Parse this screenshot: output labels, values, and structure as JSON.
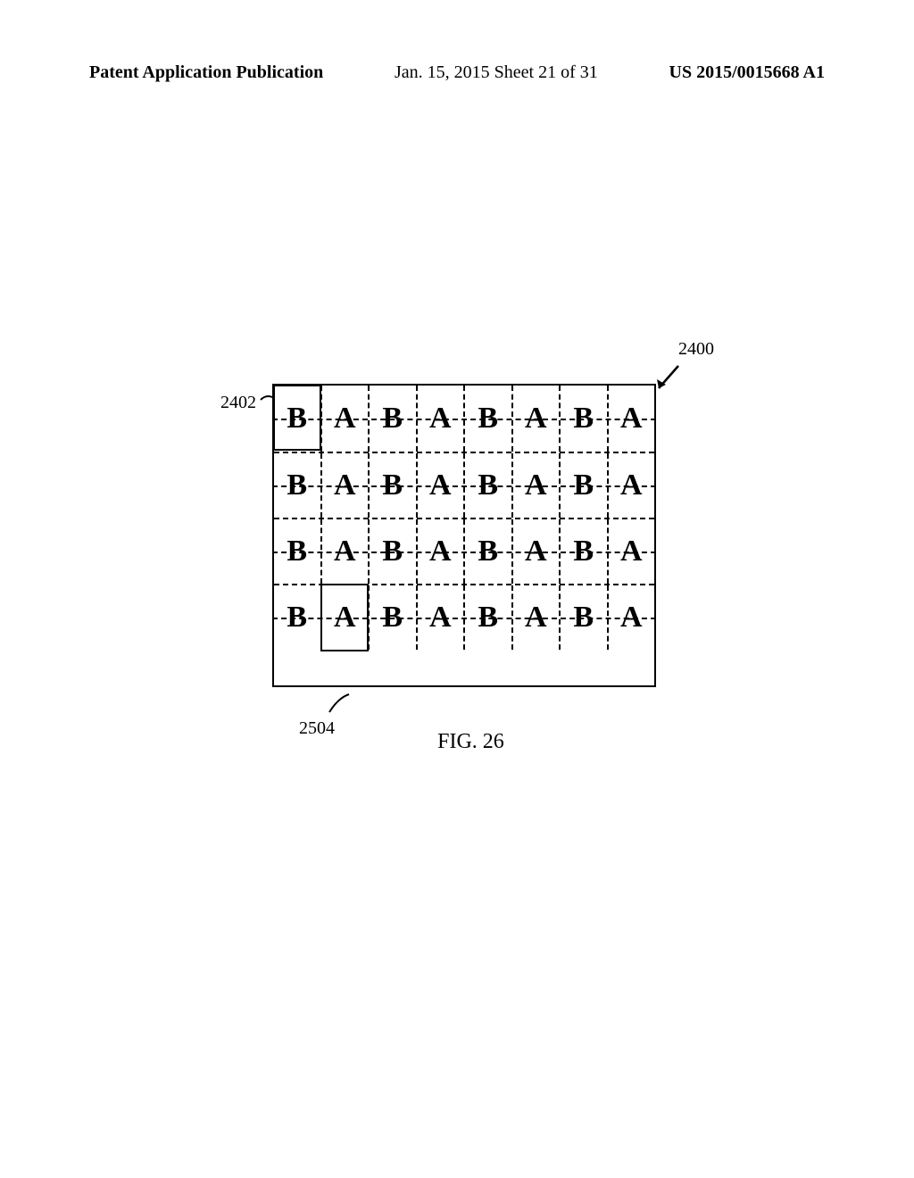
{
  "header": {
    "left": "Patent Application Publication",
    "center": "Jan. 15, 2015  Sheet 21 of 31",
    "right": "US 2015/0015668 A1"
  },
  "figure": {
    "ref_top_right": "2400",
    "ref_top_left": "2402",
    "ref_bottom": "2504",
    "caption": "FIG. 26",
    "rows": 4,
    "cols": 8,
    "pattern": [
      "B",
      "A",
      "B",
      "A",
      "B",
      "A",
      "B",
      "A"
    ]
  }
}
